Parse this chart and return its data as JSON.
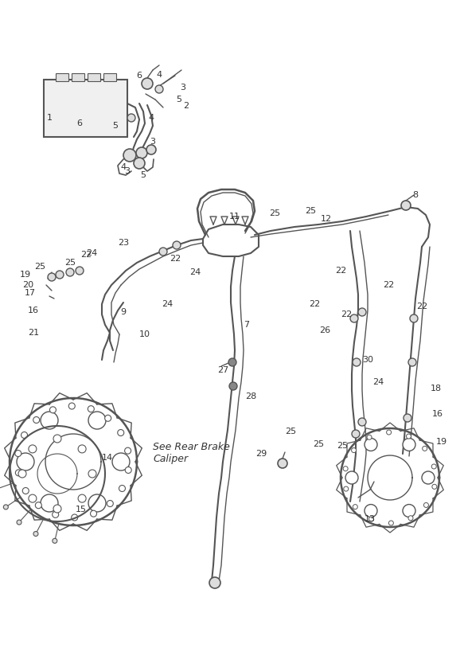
{
  "bg_color": "#ffffff",
  "line_color": "#555555",
  "text_color": "#333333",
  "fig_width": 5.83,
  "fig_height": 8.24,
  "dpi": 100
}
